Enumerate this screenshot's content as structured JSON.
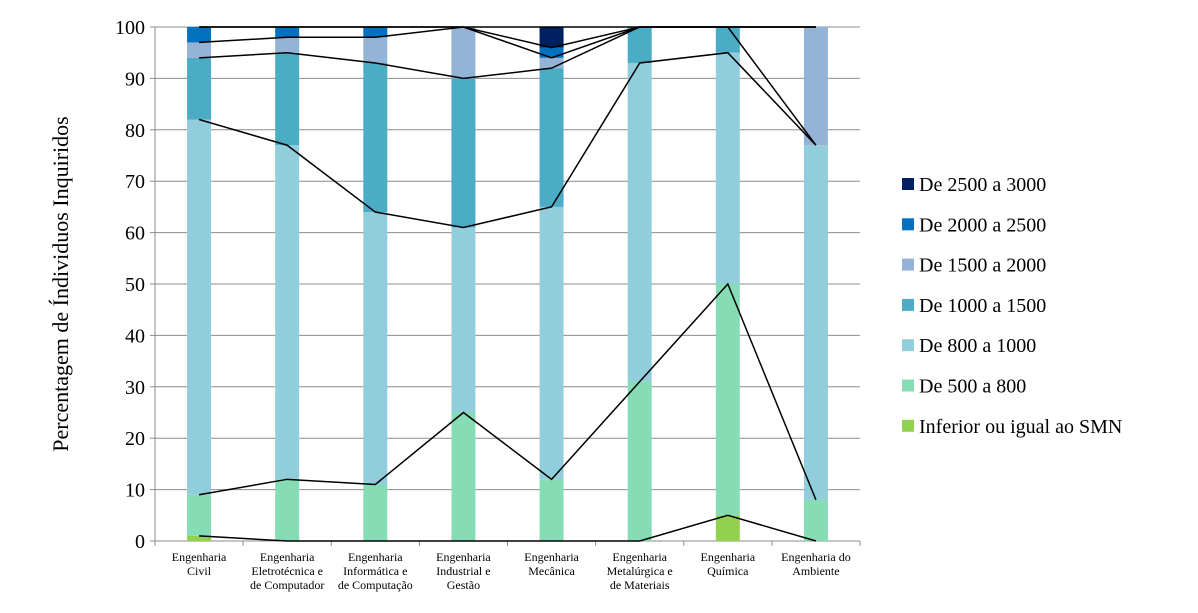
{
  "chart_data": {
    "type": "stacked-bar",
    "y_label": "Percentagem de Índividuos Inquiridos",
    "categories": [
      "Engenharia\nCivil",
      "Engenharia\nEletrotécnica e\nde Computador",
      "Engenharia\nInformática e\nde Computação",
      "Engenharia\nIndustrial e\nGestão",
      "Engenharia\nMecânica",
      "Engenharia\nMetalúrgica e\nde Materiais",
      "Engenharia\nQuímica",
      "Engenharia do\nAmbiente"
    ],
    "series": [
      {
        "name": "Inferior ou igual ao SMN",
        "color": "#92d050",
        "values": [
          1,
          0,
          0,
          0,
          0,
          0,
          5,
          0
        ]
      },
      {
        "name": "De 500 a 800",
        "color": "#86dcb4",
        "values": [
          8,
          12,
          11,
          25,
          12,
          31,
          45,
          8
        ]
      },
      {
        "name": "De 800 a 1000",
        "color": "#92cddc",
        "values": [
          73,
          65,
          53,
          36,
          53,
          62,
          45,
          69
        ]
      },
      {
        "name": "De 1000 a 1500",
        "color": "#4bacc6",
        "values": [
          12,
          18,
          29,
          29,
          27,
          7,
          5,
          0
        ]
      },
      {
        "name": "De 1500 a 2000",
        "color": "#95b3d7",
        "values": [
          3,
          3,
          5,
          10,
          2,
          0,
          0,
          23
        ]
      },
      {
        "name": "De 2000 a 2500",
        "color": "#0070c0",
        "values": [
          3,
          2,
          2,
          0,
          2,
          0,
          0,
          0
        ]
      },
      {
        "name": "De 2500 a 3000",
        "color": "#002060",
        "values": [
          0,
          0,
          0,
          0,
          4,
          0,
          0,
          0
        ]
      }
    ],
    "ylim": [
      0,
      100
    ],
    "yticks": [
      0,
      10,
      20,
      30,
      40,
      50,
      60,
      70,
      80,
      90,
      100
    ],
    "grid": true,
    "legend": "right"
  }
}
